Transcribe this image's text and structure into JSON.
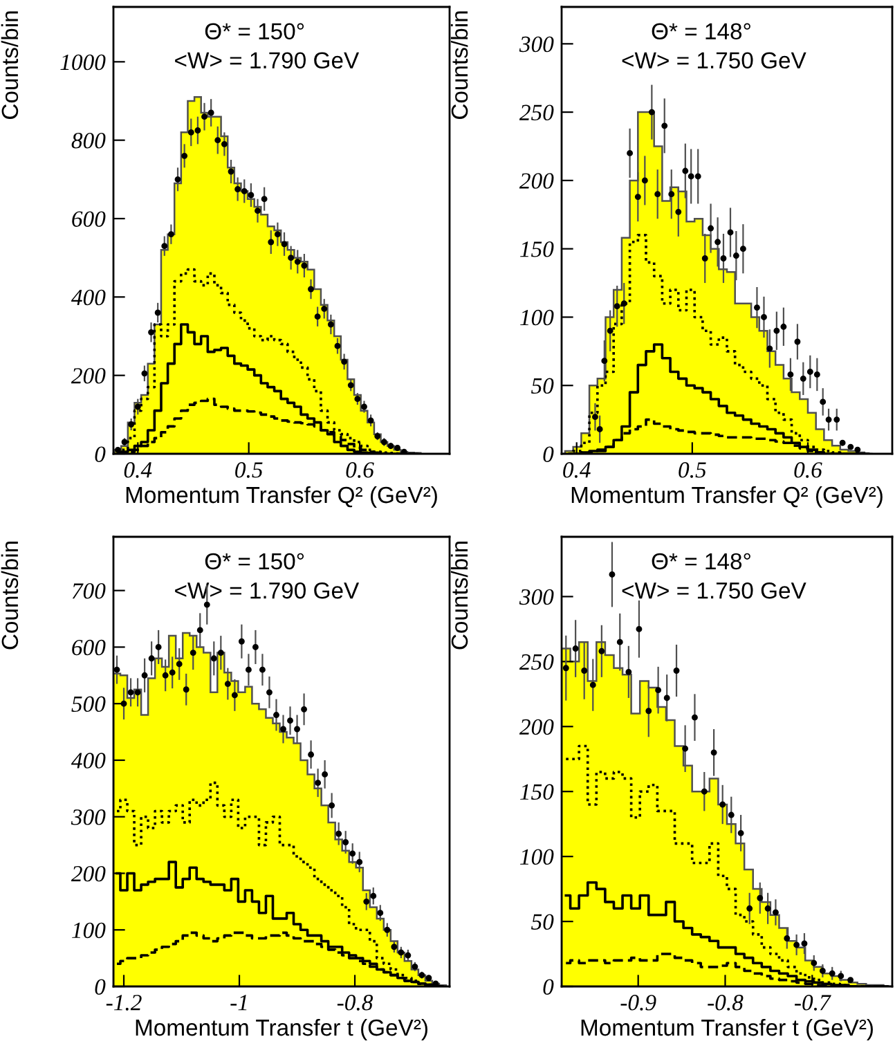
{
  "chart_data": [
    {
      "type": "histogram",
      "xlabel": "Momentum Transfer Q² (GeV²)",
      "ylabel": "Counts/bin",
      "annotations": [
        "Θ* = 150°",
        "<W> = 1.790 GeV"
      ],
      "bins": [
        0.379,
        0.385,
        0.391,
        0.397,
        0.403,
        0.409,
        0.415,
        0.421,
        0.427,
        0.433,
        0.439,
        0.445,
        0.451,
        0.457,
        0.463,
        0.469,
        0.475,
        0.481,
        0.487,
        0.493,
        0.499,
        0.505,
        0.511,
        0.517,
        0.523,
        0.529,
        0.535,
        0.541,
        0.547,
        0.553,
        0.559,
        0.565,
        0.571,
        0.577,
        0.583,
        0.589,
        0.595,
        0.601,
        0.607,
        0.613,
        0.619,
        0.625,
        0.631,
        0.637,
        0.643,
        0.649,
        0.655
      ],
      "x": [
        0.382,
        0.388,
        0.394,
        0.4,
        0.406,
        0.412,
        0.418,
        0.424,
        0.43,
        0.436,
        0.442,
        0.448,
        0.454,
        0.46,
        0.466,
        0.472,
        0.478,
        0.484,
        0.49,
        0.496,
        0.502,
        0.508,
        0.514,
        0.52,
        0.526,
        0.532,
        0.538,
        0.544,
        0.55,
        0.556,
        0.562,
        0.568,
        0.574,
        0.58,
        0.586,
        0.592,
        0.598,
        0.604,
        0.61,
        0.616,
        0.622,
        0.628,
        0.634,
        0.64,
        0.646,
        0.652
      ],
      "xlim": [
        0.378,
        0.681
      ],
      "ylim": [
        0,
        1140
      ],
      "xticks": [
        0.4,
        0.5,
        0.6
      ],
      "yticks": [
        0,
        200,
        400,
        600,
        800,
        1000
      ],
      "grid": false,
      "series": [
        {
          "type": "histogram",
          "color": "#ffff00",
          "values": [
            10,
            20,
            80,
            130,
            150,
            230,
            330,
            520,
            560,
            690,
            820,
            900,
            910,
            870,
            860,
            860,
            810,
            730,
            690,
            670,
            650,
            630,
            610,
            580,
            570,
            540,
            520,
            500,
            490,
            470,
            420,
            380,
            340,
            300,
            240,
            190,
            150,
            110,
            80,
            50,
            30,
            20,
            10,
            5,
            3,
            2
          ]
        },
        {
          "type": "step",
          "line_style": "dotted",
          "color": "#000000",
          "values": [
            5,
            10,
            40,
            110,
            140,
            170,
            330,
            300,
            330,
            440,
            460,
            470,
            440,
            430,
            460,
            430,
            410,
            380,
            360,
            340,
            320,
            300,
            290,
            300,
            290,
            280,
            260,
            240,
            220,
            190,
            160,
            110,
            80,
            60,
            50,
            40,
            30,
            20,
            10,
            5,
            3,
            2,
            1,
            0,
            0,
            0
          ]
        },
        {
          "type": "step",
          "line_style": "solid",
          "color": "#000000",
          "values": [
            0,
            5,
            10,
            20,
            30,
            60,
            110,
            180,
            230,
            280,
            330,
            310,
            280,
            300,
            260,
            265,
            270,
            250,
            230,
            225,
            215,
            200,
            180,
            170,
            160,
            140,
            130,
            120,
            100,
            90,
            80,
            60,
            50,
            30,
            20,
            10,
            5,
            3,
            2,
            1,
            0,
            0,
            0,
            0,
            0,
            0
          ]
        },
        {
          "type": "step",
          "line_style": "dashed",
          "color": "#000000",
          "values": [
            0,
            2,
            5,
            10,
            20,
            30,
            40,
            55,
            70,
            90,
            110,
            125,
            130,
            135,
            140,
            125,
            120,
            115,
            110,
            110,
            108,
            105,
            100,
            95,
            90,
            85,
            82,
            80,
            78,
            75,
            70,
            60,
            55,
            45,
            35,
            25,
            15,
            10,
            5,
            3,
            1,
            0,
            0,
            0,
            0,
            0
          ]
        },
        {
          "type": "scatter",
          "marker": "circle",
          "color": "#000000",
          "x": [
            0.382,
            0.388,
            0.394,
            0.4,
            0.406,
            0.412,
            0.418,
            0.424,
            0.43,
            0.436,
            0.442,
            0.448,
            0.454,
            0.46,
            0.466,
            0.472,
            0.478,
            0.484,
            0.49,
            0.496,
            0.502,
            0.508,
            0.514,
            0.52,
            0.526,
            0.532,
            0.538,
            0.544,
            0.55,
            0.556,
            0.562,
            0.568,
            0.574,
            0.58,
            0.586,
            0.592,
            0.598,
            0.604,
            0.61,
            0.616,
            0.622,
            0.628,
            0.634,
            0.64
          ],
          "values": [
            10,
            30,
            75,
            120,
            205,
            310,
            360,
            530,
            560,
            700,
            760,
            820,
            825,
            860,
            870,
            800,
            790,
            720,
            675,
            670,
            660,
            620,
            650,
            540,
            560,
            535,
            500,
            490,
            480,
            420,
            350,
            370,
            330,
            275,
            235,
            175,
            140,
            120,
            85,
            45,
            30,
            20,
            15,
            5
          ],
          "errors": [
            null,
            10,
            15,
            20,
            20,
            25,
            25,
            25,
            25,
            30,
            30,
            35,
            35,
            35,
            35,
            35,
            30,
            30,
            30,
            30,
            30,
            30,
            30,
            30,
            30,
            30,
            30,
            30,
            30,
            25,
            25,
            25,
            25,
            20,
            20,
            15,
            15,
            15,
            15,
            10,
            10,
            8,
            null,
            5
          ]
        }
      ]
    },
    {
      "type": "histogram",
      "xlabel": "Momentum Transfer Q² (GeV²)",
      "ylabel": "Counts/bin",
      "annotations": [
        "Θ* = 148°",
        "<W> = 1.750 GeV"
      ],
      "bins": [
        0.39,
        0.397,
        0.404,
        0.411,
        0.418,
        0.425,
        0.432,
        0.439,
        0.446,
        0.453,
        0.46,
        0.467,
        0.474,
        0.481,
        0.488,
        0.495,
        0.502,
        0.509,
        0.516,
        0.523,
        0.53,
        0.537,
        0.544,
        0.551,
        0.558,
        0.565,
        0.572,
        0.579,
        0.586,
        0.593,
        0.6,
        0.607,
        0.614,
        0.621,
        0.628,
        0.635,
        0.642,
        0.649,
        0.656
      ],
      "x": [
        0.3935,
        0.4005,
        0.4075,
        0.4145,
        0.4215,
        0.4285,
        0.4355,
        0.4425,
        0.4495,
        0.4565,
        0.4635,
        0.4705,
        0.4775,
        0.4845,
        0.4915,
        0.4985,
        0.5055,
        0.5125,
        0.5195,
        0.5265,
        0.5335,
        0.5405,
        0.5475,
        0.5545,
        0.5615,
        0.5685,
        0.5755,
        0.5825,
        0.5895,
        0.5965,
        0.6035,
        0.6105,
        0.6175,
        0.6245,
        0.6315,
        0.6385,
        0.6455,
        0.6525
      ],
      "xlim": [
        0.387,
        0.673
      ],
      "ylim": [
        0,
        327
      ],
      "xticks": [
        0.4,
        0.5,
        0.6
      ],
      "yticks": [
        0,
        50,
        100,
        150,
        200,
        250,
        300
      ],
      "grid": false,
      "series": [
        {
          "type": "histogram",
          "color": "#ffff00",
          "values": [
            2,
            5,
            15,
            50,
            55,
            100,
            120,
            158,
            200,
            250,
            250,
            225,
            185,
            195,
            192,
            170,
            172,
            160,
            150,
            135,
            133,
            110,
            110,
            100,
            90,
            75,
            65,
            55,
            45,
            40,
            30,
            18,
            10,
            6,
            3,
            2,
            1,
            0
          ]
        },
        {
          "type": "step",
          "line_style": "dotted",
          "color": "#000000",
          "values": [
            0,
            2,
            8,
            30,
            50,
            60,
            95,
            110,
            155,
            160,
            140,
            130,
            110,
            120,
            105,
            120,
            100,
            90,
            80,
            85,
            75,
            65,
            60,
            55,
            50,
            40,
            30,
            25,
            15,
            10,
            5,
            3,
            2,
            1,
            0,
            0,
            0,
            0
          ]
        },
        {
          "type": "step",
          "line_style": "solid",
          "color": "#000000",
          "values": [
            0,
            0,
            1,
            2,
            3,
            5,
            10,
            20,
            45,
            65,
            75,
            80,
            70,
            60,
            55,
            50,
            48,
            45,
            40,
            35,
            30,
            28,
            25,
            22,
            20,
            18,
            15,
            12,
            8,
            5,
            3,
            1,
            0,
            0,
            0,
            0,
            0,
            0
          ]
        },
        {
          "type": "step",
          "line_style": "dashed",
          "color": "#000000",
          "values": [
            0,
            0,
            0,
            1,
            2,
            5,
            10,
            15,
            18,
            20,
            25,
            22,
            20,
            18,
            17,
            16,
            15,
            15,
            14,
            13,
            12,
            12,
            12,
            11,
            11,
            10,
            9,
            8,
            6,
            4,
            2,
            1,
            0,
            0,
            0,
            0,
            0,
            0
          ]
        },
        {
          "type": "scatter",
          "marker": "circle",
          "color": "#000000",
          "x": [
            0.416,
            0.42,
            0.424,
            0.429,
            0.435,
            0.441,
            0.446,
            0.453,
            0.459,
            0.465,
            0.47,
            0.476,
            0.482,
            0.488,
            0.494,
            0.499,
            0.505,
            0.511,
            0.516,
            0.522,
            0.527,
            0.533,
            0.538,
            0.544,
            0.556,
            0.562,
            0.567,
            0.573,
            0.579,
            0.585,
            0.591,
            0.596,
            0.602,
            0.608,
            0.613,
            0.618,
            0.625,
            0.63,
            0.637,
            0.643
          ],
          "values": [
            27,
            18,
            68,
            90,
            108,
            110,
            220,
            188,
            200,
            250,
            190,
            240,
            190,
            177,
            207,
            203,
            203,
            143,
            165,
            155,
            143,
            162,
            145,
            150,
            107,
            100,
            77,
            90,
            93,
            58,
            82,
            55,
            60,
            58,
            38,
            25,
            25,
            8,
            5,
            3
          ],
          "errors": [
            10,
            10,
            15,
            15,
            15,
            15,
            18,
            18,
            18,
            20,
            18,
            20,
            18,
            18,
            20,
            20,
            20,
            18,
            18,
            18,
            18,
            18,
            18,
            18,
            15,
            15,
            14,
            14,
            14,
            12,
            13,
            12,
            12,
            12,
            10,
            8,
            8,
            null,
            null,
            null
          ]
        }
      ]
    },
    {
      "type": "histogram",
      "xlabel": "Momentum Transfer t (GeV²)",
      "ylabel": "Counts/bin",
      "annotations": [
        "Θ* = 150°",
        "<W> = 1.790 GeV"
      ],
      "bins": [
        -1.218,
        -1.206,
        -1.194,
        -1.182,
        -1.17,
        -1.158,
        -1.146,
        -1.134,
        -1.122,
        -1.11,
        -1.098,
        -1.086,
        -1.074,
        -1.062,
        -1.05,
        -1.038,
        -1.026,
        -1.014,
        -1.002,
        -0.99,
        -0.978,
        -0.966,
        -0.954,
        -0.942,
        -0.93,
        -0.918,
        -0.906,
        -0.894,
        -0.882,
        -0.87,
        -0.858,
        -0.846,
        -0.834,
        -0.822,
        -0.81,
        -0.798,
        -0.786,
        -0.774,
        -0.762,
        -0.75,
        -0.738,
        -0.726,
        -0.714,
        -0.702,
        -0.69,
        -0.678,
        -0.666,
        -0.654,
        -0.642
      ],
      "x": [
        -1.212,
        -1.2,
        -1.188,
        -1.176,
        -1.164,
        -1.152,
        -1.14,
        -1.128,
        -1.116,
        -1.104,
        -1.092,
        -1.08,
        -1.068,
        -1.056,
        -1.044,
        -1.032,
        -1.02,
        -1.008,
        -0.996,
        -0.984,
        -0.972,
        -0.96,
        -0.948,
        -0.936,
        -0.924,
        -0.912,
        -0.9,
        -0.888,
        -0.876,
        -0.864,
        -0.852,
        -0.84,
        -0.828,
        -0.816,
        -0.804,
        -0.792,
        -0.78,
        -0.768,
        -0.756,
        -0.744,
        -0.732,
        -0.72,
        -0.708,
        -0.696,
        -0.684,
        -0.672,
        -0.66,
        -0.648
      ],
      "xlim": [
        -1.218,
        -0.636
      ],
      "ylim": [
        0,
        795
      ],
      "xticks": [
        -1.2,
        -1,
        -0.8
      ],
      "yticks": [
        0,
        100,
        200,
        300,
        400,
        500,
        600,
        700
      ],
      "grid": false,
      "series": [
        {
          "type": "histogram",
          "color": "#ffff00",
          "values": [
            553,
            550,
            510,
            525,
            480,
            545,
            580,
            565,
            620,
            580,
            625,
            620,
            600,
            590,
            520,
            590,
            555,
            540,
            520,
            530,
            500,
            490,
            475,
            465,
            450,
            440,
            430,
            400,
            375,
            350,
            320,
            290,
            260,
            240,
            220,
            210,
            170,
            140,
            120,
            100,
            80,
            60,
            45,
            30,
            20,
            10,
            5,
            2
          ]
        },
        {
          "type": "step",
          "line_style": "dotted",
          "color": "#000000",
          "values": [
            310,
            330,
            310,
            250,
            300,
            280,
            310,
            290,
            310,
            320,
            290,
            330,
            320,
            330,
            360,
            320,
            300,
            330,
            280,
            300,
            300,
            250,
            290,
            300,
            250,
            250,
            230,
            220,
            210,
            190,
            180,
            170,
            160,
            140,
            110,
            100,
            100,
            80,
            50,
            40,
            30,
            20,
            15,
            10,
            5,
            3,
            1,
            0
          ]
        },
        {
          "type": "step",
          "line_style": "solid",
          "color": "#000000",
          "values": [
            200,
            170,
            200,
            170,
            180,
            185,
            190,
            190,
            220,
            175,
            190,
            210,
            190,
            185,
            180,
            180,
            170,
            190,
            150,
            170,
            150,
            130,
            160,
            120,
            120,
            130,
            110,
            100,
            90,
            90,
            80,
            70,
            70,
            60,
            55,
            50,
            45,
            40,
            30,
            25,
            20,
            15,
            10,
            8,
            5,
            3,
            1,
            0
          ]
        },
        {
          "type": "step",
          "line_style": "dashed",
          "color": "#000000",
          "values": [
            40,
            45,
            50,
            50,
            55,
            60,
            65,
            70,
            75,
            80,
            90,
            95,
            90,
            85,
            80,
            85,
            90,
            95,
            95,
            90,
            85,
            85,
            90,
            90,
            95,
            90,
            85,
            80,
            80,
            75,
            70,
            65,
            60,
            55,
            50,
            45,
            40,
            35,
            30,
            25,
            20,
            15,
            10,
            8,
            5,
            3,
            1,
            0
          ]
        },
        {
          "type": "scatter",
          "marker": "circle",
          "color": "#000000",
          "x": [
            -1.212,
            -1.2,
            -1.188,
            -1.176,
            -1.164,
            -1.152,
            -1.14,
            -1.128,
            -1.116,
            -1.104,
            -1.092,
            -1.08,
            -1.068,
            -1.056,
            -1.044,
            -1.032,
            -1.02,
            -1.008,
            -0.996,
            -0.984,
            -0.972,
            -0.96,
            -0.948,
            -0.936,
            -0.924,
            -0.912,
            -0.9,
            -0.888,
            -0.876,
            -0.864,
            -0.852,
            -0.84,
            -0.828,
            -0.816,
            -0.804,
            -0.792,
            -0.78,
            -0.768,
            -0.756,
            -0.744,
            -0.732,
            -0.72,
            -0.708,
            -0.696,
            -0.684,
            -0.672,
            -0.66
          ],
          "values": [
            560,
            500,
            520,
            520,
            550,
            580,
            600,
            550,
            555,
            570,
            525,
            590,
            630,
            675,
            580,
            590,
            535,
            515,
            610,
            560,
            600,
            560,
            520,
            480,
            455,
            470,
            455,
            490,
            410,
            360,
            375,
            320,
            270,
            255,
            235,
            220,
            150,
            160,
            130,
            100,
            70,
            60,
            55,
            35,
            20,
            15,
            5
          ],
          "errors": [
            25,
            28,
            25,
            25,
            30,
            30,
            30,
            28,
            28,
            28,
            28,
            30,
            30,
            35,
            30,
            30,
            28,
            28,
            30,
            28,
            30,
            28,
            28,
            28,
            25,
            25,
            25,
            28,
            25,
            25,
            25,
            22,
            20,
            20,
            18,
            18,
            15,
            15,
            14,
            12,
            10,
            10,
            10,
            8,
            6,
            5,
            4
          ]
        }
      ]
    },
    {
      "type": "histogram",
      "xlabel": "Momentum Transfer t (GeV²)",
      "ylabel": "Counts/bin",
      "annotations": [
        "Θ* = 148°",
        "<W> = 1.750 GeV"
      ],
      "bins": [
        -0.988,
        -0.978,
        -0.968,
        -0.958,
        -0.948,
        -0.938,
        -0.928,
        -0.918,
        -0.908,
        -0.898,
        -0.888,
        -0.878,
        -0.868,
        -0.858,
        -0.848,
        -0.838,
        -0.828,
        -0.818,
        -0.808,
        -0.798,
        -0.788,
        -0.778,
        -0.768,
        -0.758,
        -0.748,
        -0.738,
        -0.728,
        -0.718,
        -0.708,
        -0.698,
        -0.688,
        -0.678,
        -0.668,
        -0.658,
        -0.648,
        -0.638,
        -0.628,
        -0.618,
        -0.608
      ],
      "x": [
        -0.983,
        -0.973,
        -0.963,
        -0.953,
        -0.943,
        -0.933,
        -0.923,
        -0.913,
        -0.903,
        -0.893,
        -0.883,
        -0.873,
        -0.863,
        -0.853,
        -0.843,
        -0.833,
        -0.823,
        -0.813,
        -0.803,
        -0.793,
        -0.783,
        -0.773,
        -0.763,
        -0.753,
        -0.743,
        -0.733,
        -0.723,
        -0.713,
        -0.703,
        -0.693,
        -0.683,
        -0.673,
        -0.663,
        -0.653,
        -0.643,
        -0.633,
        -0.623,
        -0.613
      ],
      "xlim": [
        -0.988,
        -0.608
      ],
      "ylim": [
        0,
        346
      ],
      "xticks": [
        -0.9,
        -0.8,
        -0.7
      ],
      "yticks": [
        0,
        50,
        100,
        150,
        200,
        250,
        300
      ],
      "grid": false,
      "series": [
        {
          "type": "histogram",
          "color": "#ffff00",
          "values": [
            260,
            250,
            265,
            235,
            265,
            255,
            245,
            240,
            210,
            235,
            230,
            215,
            205,
            185,
            170,
            150,
            150,
            160,
            140,
            125,
            110,
            90,
            75,
            65,
            55,
            45,
            35,
            30,
            20,
            15,
            10,
            8,
            5,
            3,
            2,
            1,
            1,
            0
          ]
        },
        {
          "type": "step",
          "line_style": "dotted",
          "color": "#000000",
          "values": [
            175,
            175,
            185,
            140,
            165,
            160,
            165,
            160,
            130,
            150,
            155,
            135,
            135,
            110,
            110,
            95,
            95,
            110,
            85,
            75,
            55,
            50,
            40,
            30,
            25,
            20,
            15,
            10,
            7,
            5,
            3,
            2,
            1,
            0,
            0,
            0,
            0,
            0
          ]
        },
        {
          "type": "step",
          "line_style": "solid",
          "color": "#000000",
          "values": [
            70,
            60,
            70,
            80,
            75,
            65,
            60,
            70,
            60,
            70,
            55,
            55,
            65,
            50,
            45,
            40,
            38,
            35,
            30,
            30,
            25,
            22,
            18,
            15,
            12,
            10,
            8,
            5,
            4,
            3,
            2,
            1,
            1,
            0,
            0,
            0,
            0,
            0
          ]
        },
        {
          "type": "step",
          "line_style": "dashed",
          "color": "#000000",
          "values": [
            18,
            20,
            18,
            20,
            20,
            18,
            20,
            20,
            22,
            20,
            20,
            25,
            25,
            22,
            20,
            18,
            15,
            15,
            16,
            18,
            15,
            12,
            10,
            8,
            6,
            5,
            4,
            3,
            2,
            1,
            1,
            0,
            0,
            0,
            0,
            0,
            0,
            0
          ]
        },
        {
          "type": "scatter",
          "marker": "circle",
          "color": "#000000",
          "x": [
            -0.983,
            -0.972,
            -0.962,
            -0.952,
            -0.942,
            -0.93,
            -0.921,
            -0.911,
            -0.899,
            -0.888,
            -0.877,
            -0.867,
            -0.856,
            -0.846,
            -0.835,
            -0.824,
            -0.813,
            -0.803,
            -0.793,
            -0.782,
            -0.772,
            -0.76,
            -0.751,
            -0.742,
            -0.729,
            -0.718,
            -0.709,
            -0.698,
            -0.688,
            -0.677,
            -0.667,
            -0.656
          ],
          "values": [
            245,
            260,
            243,
            232,
            258,
            317,
            265,
            242,
            275,
            212,
            228,
            222,
            243,
            183,
            207,
            150,
            180,
            140,
            132,
            118,
            60,
            68,
            60,
            57,
            37,
            32,
            33,
            18,
            12,
            10,
            8,
            5
          ],
          "errors": [
            25,
            22,
            22,
            20,
            20,
            25,
            22,
            20,
            22,
            20,
            18,
            18,
            20,
            18,
            18,
            15,
            18,
            15,
            14,
            14,
            12,
            12,
            12,
            10,
            8,
            8,
            8,
            6,
            5,
            5,
            4,
            null
          ]
        }
      ]
    }
  ]
}
